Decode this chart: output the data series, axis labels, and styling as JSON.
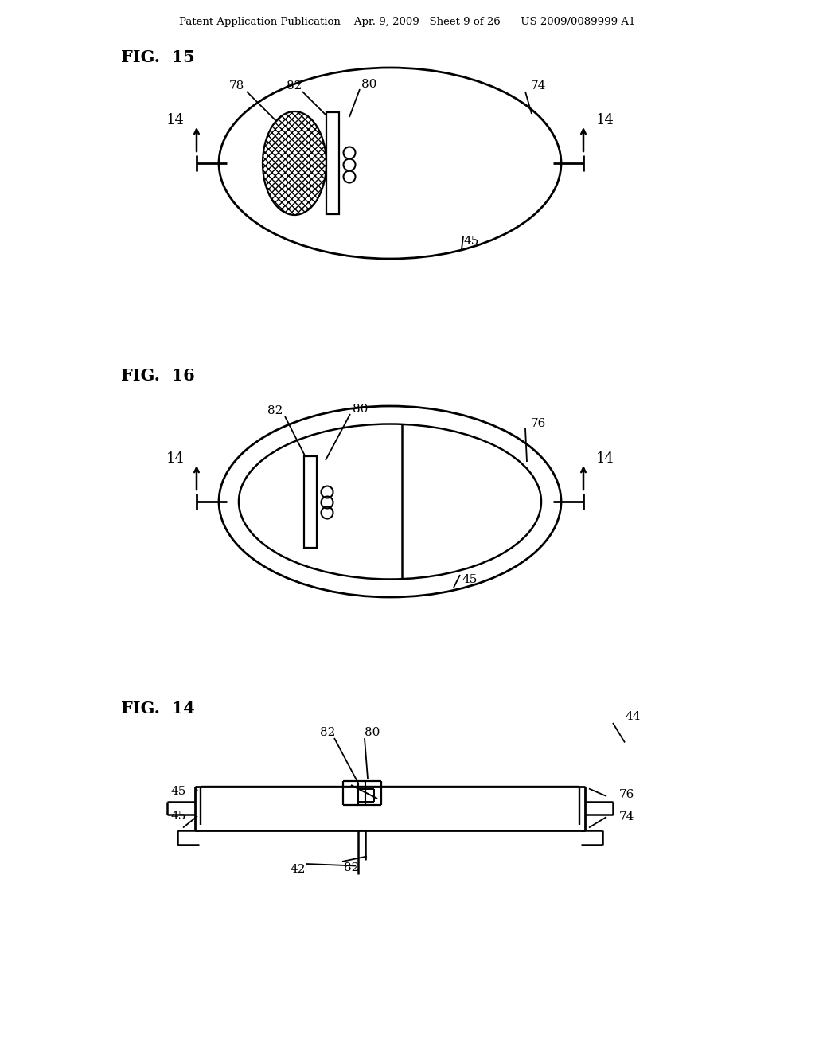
{
  "bg_color": "#ffffff",
  "header_text": "Patent Application Publication    Apr. 9, 2009   Sheet 9 of 26      US 2009/0089999 A1",
  "fig15_label": "FIG.  15",
  "fig16_label": "FIG.  16",
  "fig14_label": "FIG.  14"
}
